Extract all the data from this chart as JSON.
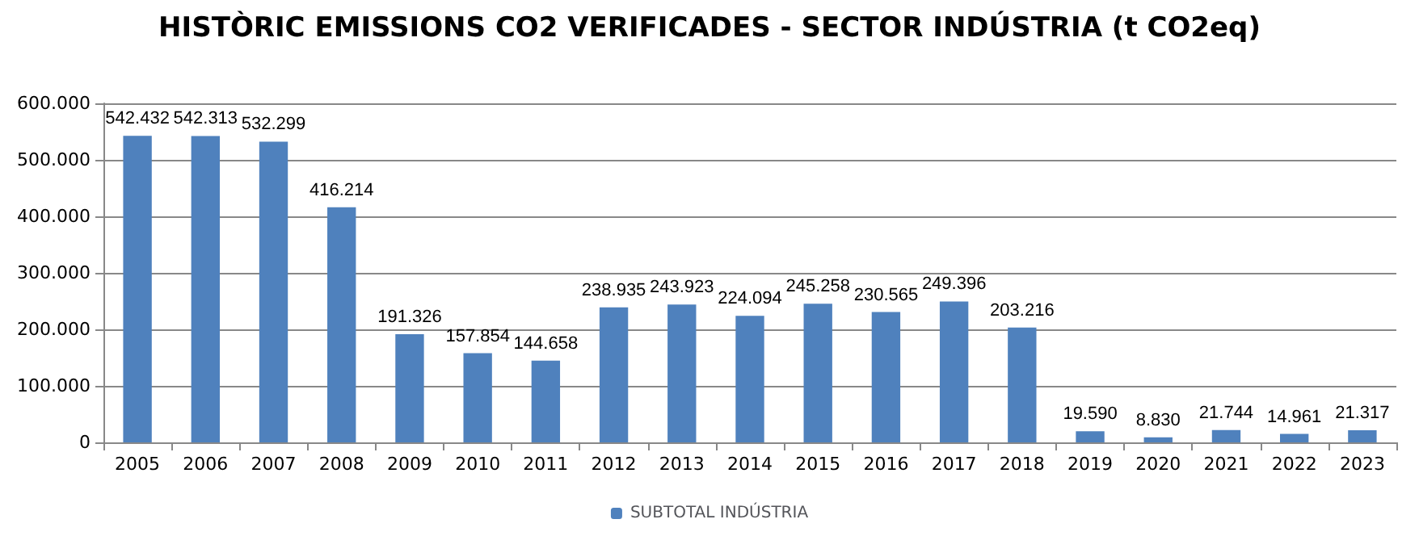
{
  "chart_data": {
    "type": "bar",
    "title": "HISTÒRIC EMISSIONS CO2 VERIFICADES - SECTOR INDÚSTRIA (t CO2eq)",
    "categories": [
      "2005",
      "2006",
      "2007",
      "2008",
      "2009",
      "2010",
      "2011",
      "2012",
      "2013",
      "2014",
      "2015",
      "2016",
      "2017",
      "2018",
      "2019",
      "2020",
      "2021",
      "2022",
      "2023"
    ],
    "series": [
      {
        "name": "SUBTOTAL INDÚSTRIA",
        "color": "#4f81bd",
        "values": [
          542432,
          542313,
          532299,
          416214,
          191326,
          157854,
          144658,
          238935,
          243923,
          224094,
          245258,
          230565,
          249396,
          203216,
          19590,
          8830,
          21744,
          14961,
          21317
        ],
        "value_labels": [
          "542.432",
          "542.313",
          "532.299",
          "416.214",
          "191.326",
          "157.854",
          "144.658",
          "238.935",
          "243.923",
          "224.094",
          "245.258",
          "230.565",
          "249.396",
          "203.216",
          "19.590",
          "8.830",
          "21.744",
          "14.961",
          "21.317"
        ]
      }
    ],
    "ylim": [
      0,
      600000
    ],
    "yticks": [
      {
        "value": 0,
        "label": "0"
      },
      {
        "value": 100000,
        "label": "100.000"
      },
      {
        "value": 200000,
        "label": "200.000"
      },
      {
        "value": 300000,
        "label": "300.000"
      },
      {
        "value": 400000,
        "label": "400.000"
      },
      {
        "value": 500000,
        "label": "500.000"
      },
      {
        "value": 600000,
        "label": "600.000"
      }
    ],
    "grid": "y",
    "legend": "bottom"
  }
}
